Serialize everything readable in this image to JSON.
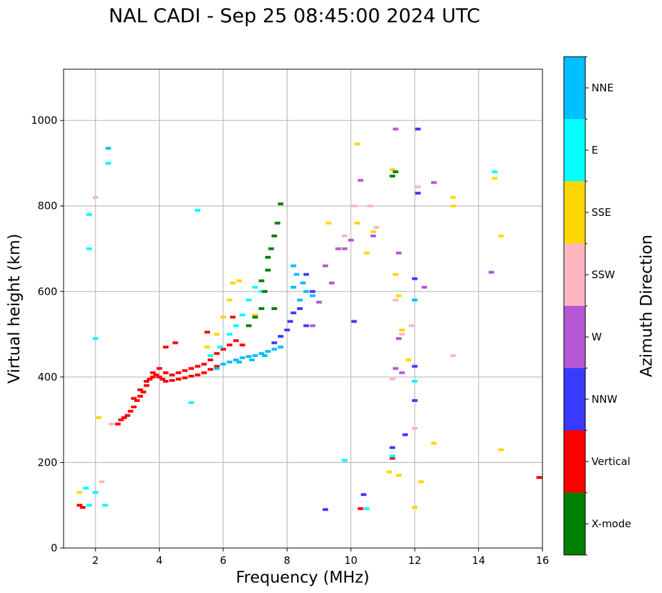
{
  "chart_data": {
    "type": "scatter",
    "title": "NAL CADI - Sep 25 08:45:00 2024 UTC",
    "xlabel": "Frequency (MHz)",
    "ylabel": "Virtual height (km)",
    "xlim": [
      1,
      16
    ],
    "ylim": [
      0,
      1120
    ],
    "xticks": [
      2,
      4,
      6,
      8,
      10,
      12,
      14,
      16
    ],
    "yticks": [
      0,
      200,
      400,
      600,
      800,
      1000
    ],
    "grid": true,
    "colorbar": {
      "label": "Azimuth Direction",
      "categories": [
        {
          "name": "X-mode",
          "color": "#008000"
        },
        {
          "name": "Vertical",
          "color": "#ff0000"
        },
        {
          "name": "NNW",
          "color": "#3a3aff"
        },
        {
          "name": "W",
          "color": "#b657d6"
        },
        {
          "name": "SSW",
          "color": "#ffb6c1"
        },
        {
          "name": "SSE",
          "color": "#ffd700"
        },
        {
          "name": "E",
          "color": "#00ffff"
        },
        {
          "name": "NNE",
          "color": "#00bfff"
        }
      ]
    },
    "series": [
      {
        "name": "Vertical",
        "points": [
          [
            2.7,
            290
          ],
          [
            2.8,
            300
          ],
          [
            2.9,
            305
          ],
          [
            3.0,
            310
          ],
          [
            3.1,
            320
          ],
          [
            3.2,
            330
          ],
          [
            3.3,
            345
          ],
          [
            3.4,
            355
          ],
          [
            3.5,
            365
          ],
          [
            3.6,
            380
          ],
          [
            3.7,
            395
          ],
          [
            3.8,
            400
          ],
          [
            3.9,
            405
          ],
          [
            4.0,
            400
          ],
          [
            4.1,
            395
          ],
          [
            4.2,
            390
          ],
          [
            4.4,
            392
          ],
          [
            4.6,
            395
          ],
          [
            4.8,
            398
          ],
          [
            5.0,
            402
          ],
          [
            5.2,
            405
          ],
          [
            5.4,
            410
          ],
          [
            5.6,
            418
          ],
          [
            5.8,
            425
          ],
          [
            3.2,
            350
          ],
          [
            3.4,
            370
          ],
          [
            3.6,
            390
          ],
          [
            3.8,
            410
          ],
          [
            4.0,
            420
          ],
          [
            4.2,
            410
          ],
          [
            4.4,
            405
          ],
          [
            4.6,
            410
          ],
          [
            4.8,
            415
          ],
          [
            5.0,
            420
          ],
          [
            5.2,
            425
          ],
          [
            5.4,
            430
          ],
          [
            5.6,
            440
          ],
          [
            5.8,
            455
          ],
          [
            6.0,
            465
          ],
          [
            6.2,
            475
          ],
          [
            6.4,
            485
          ],
          [
            6.6,
            475
          ],
          [
            4.2,
            470
          ],
          [
            4.5,
            480
          ],
          [
            5.5,
            505
          ],
          [
            6.3,
            540
          ],
          [
            1.5,
            100
          ],
          [
            1.6,
            95
          ],
          [
            15.9,
            165
          ],
          [
            10.3,
            92
          ],
          [
            11.3,
            210
          ]
        ]
      },
      {
        "name": "NNE",
        "points": [
          [
            5.8,
            420
          ],
          [
            6.0,
            430
          ],
          [
            6.2,
            435
          ],
          [
            6.4,
            440
          ],
          [
            6.6,
            445
          ],
          [
            6.8,
            448
          ],
          [
            7.0,
            450
          ],
          [
            7.2,
            455
          ],
          [
            7.4,
            460
          ],
          [
            7.6,
            465
          ],
          [
            7.8,
            470
          ],
          [
            6.5,
            435
          ],
          [
            6.9,
            440
          ],
          [
            7.3,
            450
          ],
          [
            8.2,
            610
          ],
          [
            8.2,
            660
          ],
          [
            8.4,
            580
          ],
          [
            8.6,
            600
          ],
          [
            8.8,
            590
          ],
          [
            8.3,
            640
          ],
          [
            8.5,
            620
          ],
          [
            2.4,
            935
          ],
          [
            12.0,
            580
          ]
        ]
      },
      {
        "name": "NNW",
        "points": [
          [
            7.6,
            480
          ],
          [
            7.8,
            495
          ],
          [
            8.0,
            510
          ],
          [
            8.1,
            530
          ],
          [
            8.2,
            550
          ],
          [
            8.4,
            560
          ],
          [
            8.6,
            520
          ],
          [
            8.8,
            600
          ],
          [
            8.6,
            640
          ],
          [
            10.1,
            530
          ],
          [
            10.4,
            125
          ],
          [
            11.3,
            235
          ],
          [
            11.7,
            265
          ],
          [
            12.0,
            345
          ],
          [
            12.0,
            425
          ],
          [
            12.0,
            630
          ],
          [
            12.1,
            980
          ],
          [
            12.1,
            830
          ],
          [
            9.2,
            90
          ]
        ]
      },
      {
        "name": "W",
        "points": [
          [
            8.8,
            520
          ],
          [
            9.0,
            575
          ],
          [
            9.2,
            660
          ],
          [
            9.4,
            620
          ],
          [
            9.6,
            700
          ],
          [
            10.3,
            860
          ],
          [
            10.7,
            730
          ],
          [
            11.4,
            420
          ],
          [
            11.5,
            490
          ],
          [
            11.6,
            410
          ],
          [
            12.3,
            610
          ],
          [
            12.6,
            855
          ],
          [
            14.4,
            645
          ],
          [
            11.4,
            980
          ],
          [
            11.5,
            690
          ],
          [
            9.8,
            700
          ],
          [
            10.0,
            720
          ]
        ]
      },
      {
        "name": "SSE",
        "points": [
          [
            5.5,
            470
          ],
          [
            5.8,
            500
          ],
          [
            6.0,
            540
          ],
          [
            6.2,
            580
          ],
          [
            6.3,
            620
          ],
          [
            6.5,
            625
          ],
          [
            6.8,
            580
          ],
          [
            7.0,
            545
          ],
          [
            9.3,
            760
          ],
          [
            10.2,
            760
          ],
          [
            10.5,
            690
          ],
          [
            10.7,
            740
          ],
          [
            11.3,
            885
          ],
          [
            11.4,
            640
          ],
          [
            11.5,
            590
          ],
          [
            11.6,
            510
          ],
          [
            11.8,
            440
          ],
          [
            12.0,
            95
          ],
          [
            12.2,
            155
          ],
          [
            12.6,
            245
          ],
          [
            13.2,
            820
          ],
          [
            13.2,
            800
          ],
          [
            14.5,
            880
          ],
          [
            14.5,
            865
          ],
          [
            14.7,
            730
          ],
          [
            14.7,
            230
          ],
          [
            11.2,
            178
          ],
          [
            11.5,
            170
          ],
          [
            10.2,
            945
          ],
          [
            1.5,
            130
          ],
          [
            2.1,
            305
          ]
        ]
      },
      {
        "name": "E",
        "points": [
          [
            5.6,
            450
          ],
          [
            5.9,
            470
          ],
          [
            6.2,
            500
          ],
          [
            6.4,
            520
          ],
          [
            6.6,
            545
          ],
          [
            6.8,
            580
          ],
          [
            7.0,
            610
          ],
          [
            7.2,
            600
          ],
          [
            1.7,
            140
          ],
          [
            1.8,
            100
          ],
          [
            2.0,
            130
          ],
          [
            2.3,
            100
          ],
          [
            1.8,
            700
          ],
          [
            1.8,
            780
          ],
          [
            2.0,
            490
          ],
          [
            2.4,
            900
          ],
          [
            5.2,
            790
          ],
          [
            5.0,
            340
          ],
          [
            9.8,
            205
          ],
          [
            11.3,
            215
          ],
          [
            12.0,
            390
          ],
          [
            14.5,
            880
          ],
          [
            10.5,
            92
          ]
        ]
      },
      {
        "name": "SSW",
        "points": [
          [
            2.0,
            820
          ],
          [
            2.5,
            290
          ],
          [
            9.8,
            730
          ],
          [
            10.1,
            800
          ],
          [
            10.6,
            800
          ],
          [
            10.8,
            750
          ],
          [
            11.4,
            580
          ],
          [
            11.6,
            500
          ],
          [
            11.9,
            520
          ],
          [
            12.0,
            280
          ],
          [
            12.1,
            845
          ],
          [
            13.2,
            450
          ],
          [
            2.2,
            155
          ],
          [
            11.3,
            395
          ]
        ]
      },
      {
        "name": "X-mode",
        "points": [
          [
            6.8,
            520
          ],
          [
            7.0,
            540
          ],
          [
            7.2,
            560
          ],
          [
            7.3,
            600
          ],
          [
            7.4,
            650
          ],
          [
            7.5,
            700
          ],
          [
            7.6,
            730
          ],
          [
            7.7,
            760
          ],
          [
            7.8,
            805
          ],
          [
            7.4,
            680
          ],
          [
            7.2,
            625
          ],
          [
            7.6,
            560
          ],
          [
            11.4,
            880
          ],
          [
            11.3,
            870
          ]
        ]
      }
    ]
  }
}
